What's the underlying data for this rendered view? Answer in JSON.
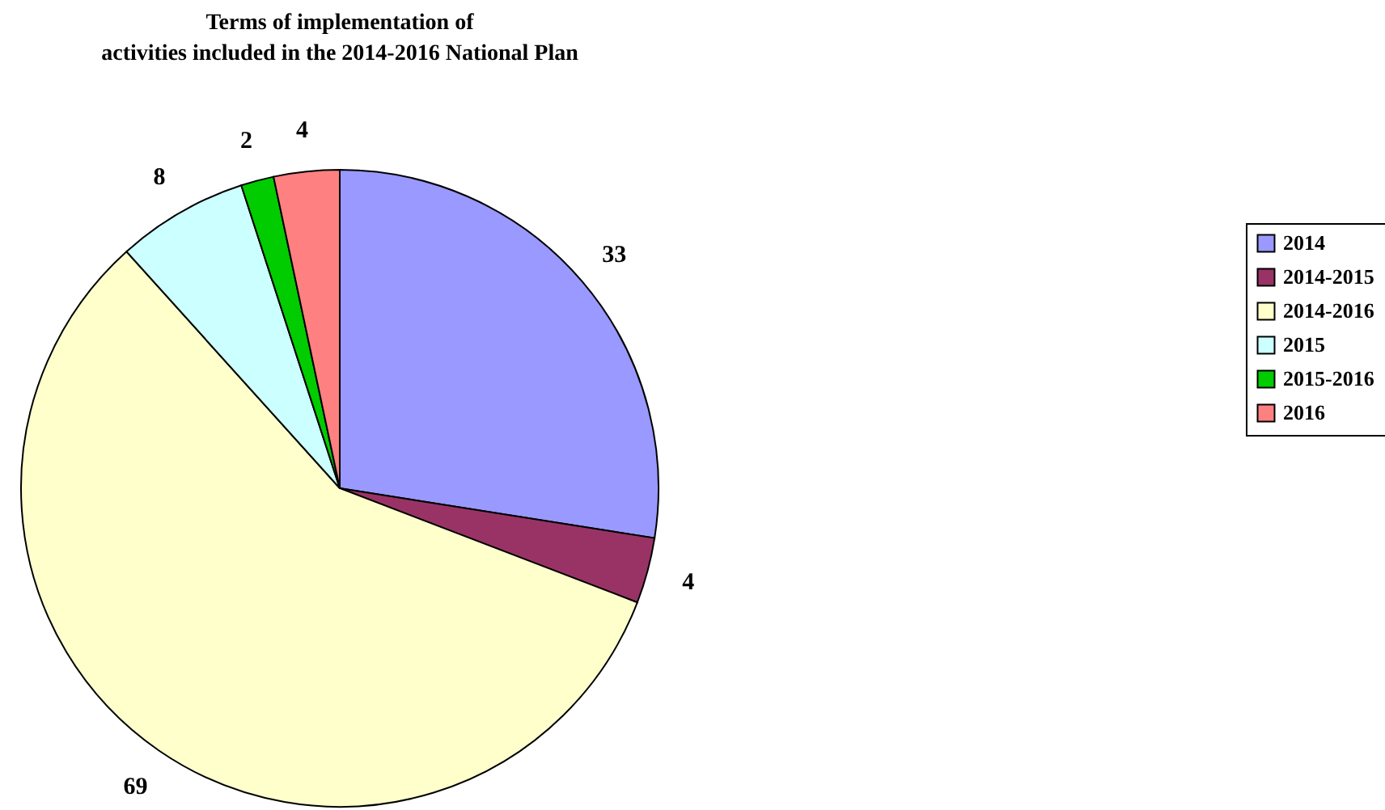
{
  "chart_data": {
    "type": "pie",
    "title": "Terms of implementation of activities included in the 2014-2016 National Plan",
    "categories": [
      "2014",
      "2014-2015",
      "2014-2016",
      "2015",
      "2015-2016",
      "2016"
    ],
    "values": [
      33,
      4,
      69,
      8,
      2,
      4
    ],
    "colors": [
      "#9999ff",
      "#993366",
      "#ffffcc",
      "#ccffff",
      "#00cc00",
      "#ff8080"
    ],
    "data_labels": true,
    "legend": "right"
  }
}
